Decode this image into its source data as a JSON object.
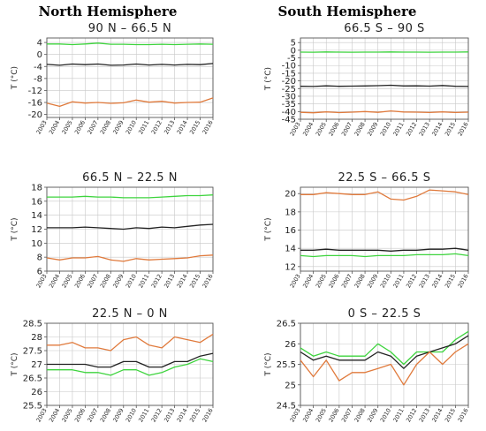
{
  "headers": {
    "left": "North Hemisphere",
    "right": "South Hemisphere"
  },
  "colors": {
    "green": "#3ed43e",
    "black": "#222222",
    "orange": "#e07a3c",
    "grid": "#c8c8c8",
    "frame": "#555555"
  },
  "chart_data": [
    {
      "type": "line",
      "title": "90 N – 66.5 N",
      "xlabel": "",
      "ylabel": "T (°C)",
      "x": [
        "2003",
        "2004",
        "2005",
        "2006",
        "2007",
        "2008",
        "2009",
        "2010",
        "2011",
        "2012",
        "2013",
        "2014",
        "2015",
        "2016"
      ],
      "yticks": [
        4,
        0,
        -4,
        -8,
        -12,
        -16,
        -20
      ],
      "ylim": [
        -21,
        5.5
      ],
      "grid": true,
      "series": [
        {
          "color": "green",
          "values": [
            3.5,
            3.5,
            3.3,
            3.5,
            3.8,
            3.4,
            3.4,
            3.3,
            3.3,
            3.4,
            3.3,
            3.4,
            3.5,
            3.4
          ]
        },
        {
          "color": "black",
          "values": [
            -3.3,
            -3.6,
            -3.2,
            -3.4,
            -3.2,
            -3.6,
            -3.5,
            -3.2,
            -3.5,
            -3.3,
            -3.5,
            -3.3,
            -3.4,
            -3.0
          ]
        },
        {
          "color": "orange",
          "values": [
            -16.2,
            -17.3,
            -15.8,
            -16.2,
            -16.0,
            -16.3,
            -16.1,
            -15.2,
            -15.9,
            -15.6,
            -16.2,
            -16.0,
            -15.9,
            -14.5
          ]
        }
      ]
    },
    {
      "type": "line",
      "title": "66.5 S – 90 S",
      "xlabel": "",
      "ylabel": "T (°C)",
      "x": [
        "2003",
        "2004",
        "2005",
        "2006",
        "2007",
        "2008",
        "2009",
        "2010",
        "2011",
        "2012",
        "2013",
        "2014",
        "2015",
        "2016"
      ],
      "yticks": [
        5,
        0,
        -5,
        -10,
        -15,
        -20,
        -25,
        -30,
        -35,
        -40,
        -45
      ],
      "ylim": [
        -45,
        8
      ],
      "grid": true,
      "series": [
        {
          "color": "green",
          "values": [
            -1.2,
            -1.3,
            -1.1,
            -1.2,
            -1.3,
            -1.2,
            -1.2,
            -1.1,
            -1.2,
            -1.2,
            -1.3,
            -1.2,
            -1.2,
            -1.1
          ]
        },
        {
          "color": "black",
          "values": [
            -23.5,
            -23.6,
            -23.2,
            -23.5,
            -23.4,
            -23.3,
            -23.1,
            -22.8,
            -23.3,
            -23.2,
            -23.4,
            -23.0,
            -23.5,
            -23.6
          ]
        },
        {
          "color": "orange",
          "values": [
            -40.5,
            -40.8,
            -40.2,
            -40.7,
            -40.4,
            -40.0,
            -40.5,
            -39.6,
            -40.3,
            -40.4,
            -40.6,
            -40.2,
            -40.6,
            -40.4
          ]
        }
      ]
    },
    {
      "type": "line",
      "title": "66.5 N – 22.5 N",
      "xlabel": "",
      "ylabel": "T (°C)",
      "x": [
        "2003",
        "2004",
        "2005",
        "2006",
        "2007",
        "2008",
        "2009",
        "2010",
        "2011",
        "2012",
        "2013",
        "2014",
        "2015",
        "2016"
      ],
      "yticks": [
        18,
        16,
        14,
        12,
        10,
        8,
        6
      ],
      "ylim": [
        6,
        18
      ],
      "grid": true,
      "series": [
        {
          "color": "green",
          "values": [
            16.6,
            16.6,
            16.6,
            16.7,
            16.6,
            16.6,
            16.5,
            16.5,
            16.5,
            16.6,
            16.7,
            16.8,
            16.8,
            16.9
          ]
        },
        {
          "color": "black",
          "values": [
            12.2,
            12.2,
            12.2,
            12.3,
            12.2,
            12.1,
            12.0,
            12.2,
            12.1,
            12.3,
            12.2,
            12.4,
            12.6,
            12.7
          ]
        },
        {
          "color": "orange",
          "values": [
            7.9,
            7.6,
            7.9,
            7.9,
            8.1,
            7.6,
            7.4,
            7.8,
            7.6,
            7.7,
            7.8,
            7.9,
            8.2,
            8.3
          ]
        }
      ]
    },
    {
      "type": "line",
      "title": "22.5 S – 66.5 S",
      "xlabel": "",
      "ylabel": "T (°C)",
      "x": [
        "2003",
        "2004",
        "2005",
        "2006",
        "2007",
        "2008",
        "2009",
        "2010",
        "2011",
        "2012",
        "2013",
        "2014",
        "2015",
        "2016"
      ],
      "yticks": [
        20,
        18,
        16,
        14,
        12
      ],
      "ylim": [
        11.5,
        20.7
      ],
      "grid": true,
      "series": [
        {
          "color": "orange",
          "values": [
            19.9,
            19.9,
            20.1,
            20.0,
            19.9,
            19.9,
            20.2,
            19.4,
            19.3,
            19.7,
            20.4,
            20.3,
            20.2,
            19.9
          ]
        },
        {
          "color": "black",
          "values": [
            13.8,
            13.8,
            13.9,
            13.8,
            13.8,
            13.8,
            13.8,
            13.7,
            13.8,
            13.8,
            13.9,
            13.9,
            14.0,
            13.8
          ]
        },
        {
          "color": "green",
          "values": [
            13.2,
            13.1,
            13.2,
            13.2,
            13.2,
            13.1,
            13.2,
            13.2,
            13.2,
            13.3,
            13.3,
            13.3,
            13.4,
            13.2
          ]
        }
      ]
    },
    {
      "type": "line",
      "title": "22.5 N – 0 N",
      "xlabel": "",
      "ylabel": "T (°C)",
      "x": [
        "2003",
        "2004",
        "2005",
        "2006",
        "2007",
        "2008",
        "2009",
        "2010",
        "2011",
        "2012",
        "2013",
        "2014",
        "2015",
        "2016"
      ],
      "yticks": [
        28.5,
        28.0,
        27.5,
        27.0,
        26.5,
        26.0,
        25.5
      ],
      "ylim": [
        25.5,
        28.5
      ],
      "grid": true,
      "series": [
        {
          "color": "orange",
          "values": [
            27.7,
            27.7,
            27.8,
            27.6,
            27.6,
            27.5,
            27.9,
            28.0,
            27.7,
            27.6,
            28.0,
            27.9,
            27.8,
            28.1
          ]
        },
        {
          "color": "black",
          "values": [
            27.0,
            27.0,
            27.0,
            27.0,
            26.9,
            26.9,
            27.1,
            27.1,
            26.9,
            26.9,
            27.1,
            27.1,
            27.3,
            27.4
          ]
        },
        {
          "color": "green",
          "values": [
            26.8,
            26.8,
            26.8,
            26.7,
            26.7,
            26.6,
            26.8,
            26.8,
            26.6,
            26.7,
            26.9,
            27.0,
            27.2,
            27.1
          ]
        }
      ]
    },
    {
      "type": "line",
      "title": "0 S – 22.5 S",
      "xlabel": "",
      "ylabel": "T (°C)",
      "x": [
        "2003",
        "2004",
        "2005",
        "2006",
        "2007",
        "2008",
        "2009",
        "2010",
        "2011",
        "2012",
        "2013",
        "2014",
        "2015",
        "2016"
      ],
      "yticks": [
        26.5,
        26.0,
        25.5,
        25.0,
        24.5
      ],
      "ylim": [
        24.5,
        26.5
      ],
      "grid": true,
      "series": [
        {
          "color": "green",
          "values": [
            25.9,
            25.7,
            25.8,
            25.7,
            25.7,
            25.7,
            26.0,
            25.8,
            25.5,
            25.8,
            25.8,
            25.8,
            26.1,
            26.3
          ]
        },
        {
          "color": "black",
          "values": [
            25.8,
            25.6,
            25.7,
            25.6,
            25.6,
            25.6,
            25.8,
            25.7,
            25.4,
            25.7,
            25.8,
            25.9,
            26.0,
            26.2
          ]
        },
        {
          "color": "orange",
          "values": [
            25.6,
            25.2,
            25.6,
            25.1,
            25.3,
            25.3,
            25.4,
            25.5,
            25.0,
            25.5,
            25.8,
            25.5,
            25.8,
            26.0
          ]
        }
      ]
    }
  ]
}
